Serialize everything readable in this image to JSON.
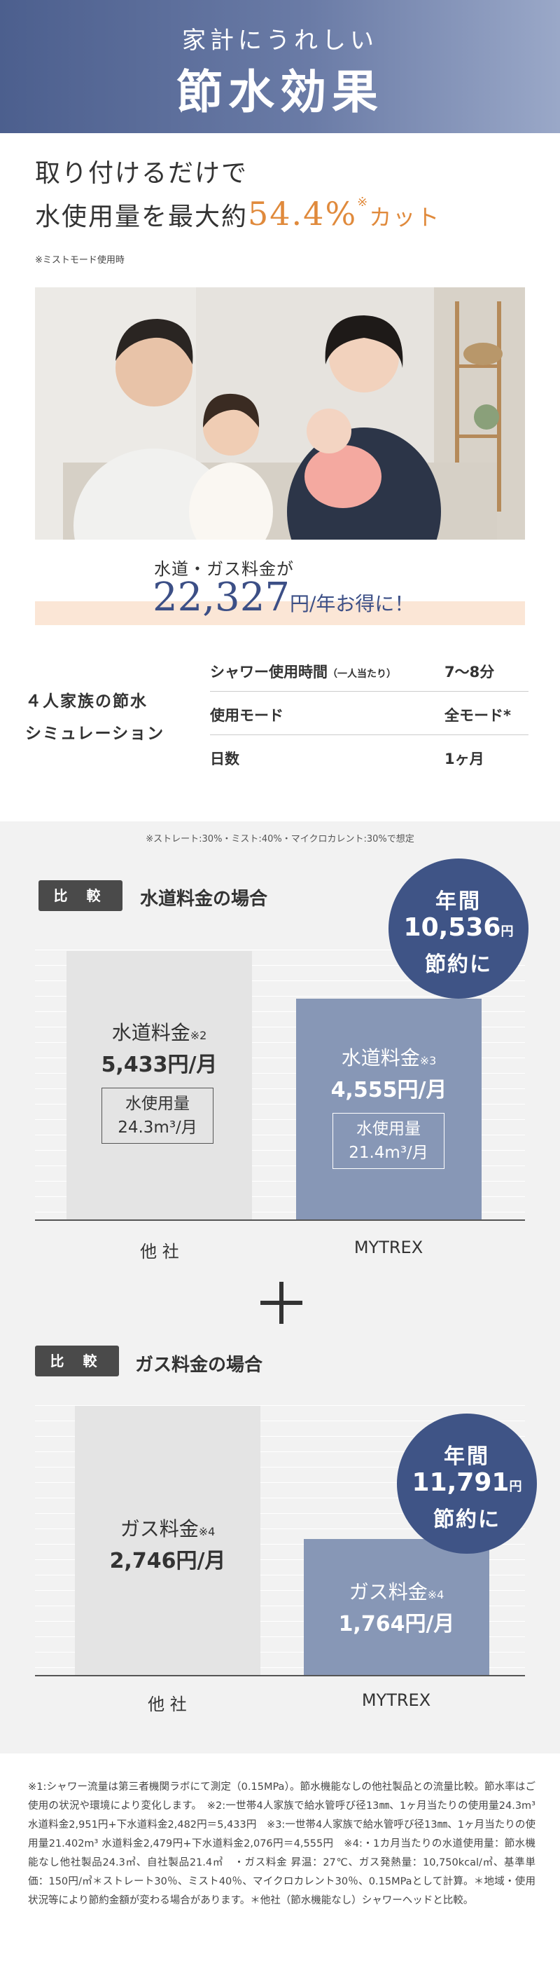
{
  "hero": {
    "subtitle": "家計にうれしい",
    "title": "節水効果"
  },
  "intro": {
    "line1": "取り付けるだけで",
    "line2_prefix": "水使用量を最大約",
    "percent": "54.4%",
    "sup": "※",
    "cut": "カット",
    "note": "※ミストモード使用時"
  },
  "savings": {
    "line1": "水道・ガス料金が",
    "amount": "22,327",
    "unit": "円/年お得に！"
  },
  "simulation": {
    "label_line1": "４人家族の節水",
    "label_line2": "シミュレーション",
    "rows": [
      {
        "key": "シャワー使用時間",
        "key_small": "（一人当たり）",
        "value": "7〜8分"
      },
      {
        "key": "使用モード",
        "key_small": "",
        "value": "全モード*"
      },
      {
        "key": "日数",
        "key_small": "",
        "value": "1ヶ月"
      }
    ]
  },
  "assumption": "※ストレート:30%・ミスト:40%・マイクロカレント:30%で想定",
  "water": {
    "tag": "比 較",
    "title": "水道料金の場合",
    "other": {
      "label": "水道料金",
      "note": "※2",
      "value": "5,433円/月",
      "usage_label": "水使用量",
      "usage_value": "24.3m³/月",
      "amount": 5433
    },
    "mine": {
      "label": "水道料金",
      "note": "※3",
      "value": "4,555円/月",
      "usage_label": "水使用量",
      "usage_value": "21.4m³/月",
      "amount": 4555
    },
    "badge": {
      "line1": "年間",
      "amount": "10,536",
      "yen": "円",
      "line3": "節約に"
    },
    "axis_other": "他 社",
    "axis_mine": "MYTREX"
  },
  "gas": {
    "tag": "比 較",
    "title": "ガス料金の場合",
    "other": {
      "label": "ガス料金",
      "note": "※4",
      "value": "2,746円/月",
      "amount": 2746
    },
    "mine": {
      "label": "ガス料金",
      "note": "※4",
      "value": "1,764円/月",
      "amount": 1764
    },
    "badge": {
      "line1": "年間",
      "amount": "11,791",
      "yen": "円",
      "line3": "節約に"
    },
    "axis_other": "他 社",
    "axis_mine": "MYTREX"
  },
  "footnote": "※1:シャワー流量は第三者機関ラボにて測定（0.15MPa）。節水機能なしの他社製品との流量比較。節水率はご使用の状況や環境により変化します。　※2:一世帯4人家族で給水管呼び径13㎜、1ヶ月当たりの使用量24.3m³ 水道料金2,951円+下水道料金2,482円＝5,433円　※3:一世帯4人家族で給水管呼び径13㎜、1ヶ月当たりの使用量21.402m³ 水道料金2,479円+下水道料金2,076円＝4,555円　※4:・1カ月当たりの水道使用量：節水機能なし他社製品24.3㎥、自社製品21.4㎥　・ガス料金 昇温：27℃、ガス発熱量：10,750kcal/㎥、基準単価：150円/㎥＊ストレート30％、ミスト40％、マイクロカレント30％、0.15MPaとして計算。＊地域・使用状況等により節約金額が変わる場合があります。＊他社（節水機能なし）シャワーヘッドと比較。",
  "colors": {
    "navy": "#3f5486",
    "bar_mine": "#8797b6",
    "bar_other": "#e4e4e4",
    "accent_orange": "#e08a3c",
    "band_peach": "#fbe6d6"
  }
}
